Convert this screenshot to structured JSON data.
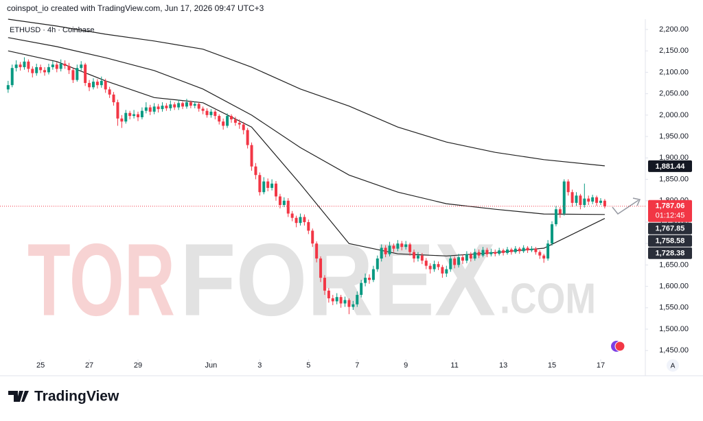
{
  "header": "coinspot_io created with TradingView.com, Jun 17, 2026 09:47 UTC+3",
  "footer": "TradingView",
  "scale_button": "A",
  "watermark": [
    "TOR",
    "FOREX",
    ".COM"
  ],
  "chart_data": {
    "type": "candlestick",
    "title": "ETHUSD · 4h · Coinbase",
    "up_color": "#089981",
    "down_color": "#f23645",
    "xlim": [
      -2,
      157
    ],
    "ylim": [
      1436,
      2224
    ],
    "xticks": [
      {
        "value": 8,
        "label": "25"
      },
      {
        "value": 20,
        "label": "27"
      },
      {
        "value": 32,
        "label": "29"
      },
      {
        "value": 50,
        "label": "Jun"
      },
      {
        "value": 62,
        "label": "3"
      },
      {
        "value": 74,
        "label": "5"
      },
      {
        "value": 86,
        "label": "7"
      },
      {
        "value": 98,
        "label": "9"
      },
      {
        "value": 110,
        "label": "11"
      },
      {
        "value": 122,
        "label": "13"
      },
      {
        "value": 134,
        "label": "15"
      },
      {
        "value": 146,
        "label": "17"
      }
    ],
    "yticks": [
      {
        "value": 1450,
        "label": "1,450.00"
      },
      {
        "value": 1500,
        "label": "1,500.00"
      },
      {
        "value": 1550,
        "label": "1,550.00"
      },
      {
        "value": 1600,
        "label": "1,600.00"
      },
      {
        "value": 1650,
        "label": "1,650.00"
      },
      {
        "value": 1700,
        "label": "1,700.00"
      },
      {
        "value": 1750,
        "label": "1,750.00"
      },
      {
        "value": 1800,
        "label": "1,800.00"
      },
      {
        "value": 1850,
        "label": "1,850.00"
      },
      {
        "value": 1900,
        "label": "1,900.00"
      },
      {
        "value": 1950,
        "label": "1,950.00"
      },
      {
        "value": 2000,
        "label": "2,000.00"
      },
      {
        "value": 2050,
        "label": "2,050.00"
      },
      {
        "value": 2100,
        "label": "2,100.00"
      },
      {
        "value": 2150,
        "label": "2,150.00"
      },
      {
        "value": 2200,
        "label": "2,200.00"
      }
    ],
    "open": [
      2060,
      2070,
      2110,
      2118,
      2112,
      2125,
      2108,
      2098,
      2112,
      2105,
      2100,
      2112,
      2118,
      2108,
      2120,
      2115,
      2105,
      2082,
      2110,
      2118,
      2075,
      2065,
      2078,
      2070,
      2080,
      2060,
      2048,
      2030,
      1992,
      1985,
      2005,
      1998,
      2002,
      1995,
      2010,
      2018,
      2008,
      2020,
      2014,
      2022,
      2016,
      2025,
      2018,
      2028,
      2020,
      2030,
      2022,
      2026,
      2015,
      2010,
      2000,
      2008,
      1998,
      1985,
      1975,
      1998,
      1990,
      1982,
      1978,
      1965,
      1930,
      1880,
      1860,
      1820,
      1845,
      1830,
      1840,
      1810,
      1790,
      1800,
      1770,
      1760,
      1748,
      1762,
      1750,
      1730,
      1700,
      1665,
      1620,
      1590,
      1572,
      1565,
      1575,
      1560,
      1568,
      1552,
      1558,
      1580,
      1608,
      1620,
      1615,
      1640,
      1665,
      1690,
      1675,
      1695,
      1688,
      1700,
      1692,
      1698,
      1680,
      1665,
      1672,
      1660,
      1648,
      1640,
      1652,
      1645,
      1630,
      1640,
      1665,
      1650,
      1668,
      1660,
      1675,
      1665,
      1680,
      1672,
      1685,
      1675,
      1680,
      1676,
      1684,
      1678,
      1686,
      1680,
      1688,
      1682,
      1690,
      1684,
      1688,
      1680,
      1672,
      1665,
      1700,
      1745,
      1780,
      1770,
      1845,
      1820,
      1795,
      1812,
      1790,
      1805,
      1798,
      1808,
      1795,
      1800
    ],
    "high": [
      2080,
      2118,
      2128,
      2124,
      2135,
      2130,
      2114,
      2120,
      2118,
      2112,
      2120,
      2126,
      2124,
      2130,
      2128,
      2122,
      2110,
      2118,
      2126,
      2122,
      2082,
      2086,
      2084,
      2090,
      2085,
      2066,
      2054,
      2036,
      2000,
      2012,
      2010,
      2012,
      2008,
      2018,
      2030,
      2024,
      2028,
      2026,
      2030,
      2028,
      2034,
      2030,
      2036,
      2032,
      2038,
      2034,
      2032,
      2030,
      2020,
      2016,
      2014,
      2012,
      2002,
      1992,
      2004,
      2002,
      1996,
      1990,
      1984,
      1970,
      1936,
      1888,
      1866,
      1855,
      1852,
      1850,
      1846,
      1816,
      1808,
      1806,
      1776,
      1765,
      1770,
      1768,
      1756,
      1735,
      1705,
      1670,
      1626,
      1596,
      1580,
      1584,
      1580,
      1576,
      1572,
      1566,
      1588,
      1615,
      1630,
      1628,
      1648,
      1672,
      1698,
      1696,
      1704,
      1700,
      1708,
      1706,
      1706,
      1702,
      1686,
      1680,
      1678,
      1666,
      1654,
      1660,
      1658,
      1650,
      1648,
      1672,
      1670,
      1676,
      1674,
      1682,
      1680,
      1688,
      1686,
      1692,
      1690,
      1688,
      1686,
      1690,
      1688,
      1692,
      1690,
      1694,
      1692,
      1696,
      1694,
      1694,
      1692,
      1684,
      1676,
      1708,
      1752,
      1788,
      1785,
      1850,
      1850,
      1826,
      1820,
      1816,
      1840,
      1812,
      1814,
      1812,
      1806,
      1804
    ],
    "low": [
      2052,
      2065,
      2102,
      2104,
      2106,
      2100,
      2088,
      2092,
      2098,
      2092,
      2095,
      2106,
      2100,
      2102,
      2108,
      2096,
      2075,
      2078,
      2104,
      2068,
      2056,
      2060,
      2062,
      2064,
      2052,
      2040,
      2022,
      1975,
      1970,
      1980,
      1990,
      1992,
      1986,
      1990,
      2004,
      2000,
      2002,
      2006,
      2008,
      2010,
      2010,
      2012,
      2012,
      2014,
      2015,
      2016,
      2016,
      2008,
      2002,
      1994,
      1994,
      1990,
      1978,
      1966,
      1970,
      1982,
      1975,
      1968,
      1955,
      1922,
      1870,
      1850,
      1812,
      1815,
      1822,
      1824,
      1800,
      1782,
      1785,
      1762,
      1752,
      1738,
      1742,
      1742,
      1722,
      1692,
      1656,
      1610,
      1580,
      1562,
      1556,
      1558,
      1550,
      1552,
      1535,
      1545,
      1552,
      1574,
      1600,
      1606,
      1610,
      1634,
      1658,
      1668,
      1670,
      1680,
      1682,
      1684,
      1686,
      1672,
      1656,
      1658,
      1652,
      1640,
      1630,
      1634,
      1638,
      1620,
      1622,
      1634,
      1642,
      1644,
      1652,
      1654,
      1658,
      1660,
      1666,
      1668,
      1668,
      1670,
      1670,
      1672,
      1672,
      1674,
      1674,
      1676,
      1676,
      1678,
      1678,
      1680,
      1674,
      1664,
      1655,
      1660,
      1695,
      1740,
      1760,
      1765,
      1812,
      1786,
      1788,
      1780,
      1784,
      1790,
      1792,
      1788,
      1790,
      1782
    ],
    "close": [
      2070,
      2110,
      2118,
      2112,
      2125,
      2108,
      2098,
      2112,
      2105,
      2100,
      2112,
      2118,
      2108,
      2120,
      2115,
      2105,
      2082,
      2110,
      2118,
      2075,
      2065,
      2078,
      2070,
      2080,
      2060,
      2048,
      2030,
      1992,
      1985,
      2005,
      1998,
      2002,
      1995,
      2010,
      2018,
      2008,
      2020,
      2014,
      2022,
      2016,
      2025,
      2018,
      2028,
      2020,
      2030,
      2022,
      2026,
      2015,
      2010,
      2000,
      2008,
      1998,
      1985,
      1975,
      1998,
      1990,
      1982,
      1978,
      1965,
      1930,
      1880,
      1860,
      1820,
      1845,
      1830,
      1840,
      1810,
      1790,
      1800,
      1770,
      1760,
      1748,
      1762,
      1750,
      1730,
      1700,
      1665,
      1620,
      1590,
      1572,
      1565,
      1575,
      1560,
      1568,
      1552,
      1558,
      1580,
      1608,
      1620,
      1615,
      1640,
      1665,
      1690,
      1675,
      1695,
      1688,
      1700,
      1692,
      1698,
      1680,
      1665,
      1672,
      1660,
      1648,
      1640,
      1652,
      1645,
      1630,
      1640,
      1665,
      1650,
      1668,
      1660,
      1675,
      1665,
      1680,
      1672,
      1685,
      1675,
      1680,
      1676,
      1684,
      1678,
      1686,
      1680,
      1688,
      1682,
      1690,
      1684,
      1688,
      1680,
      1672,
      1665,
      1700,
      1745,
      1780,
      1770,
      1845,
      1820,
      1795,
      1812,
      1790,
      1805,
      1798,
      1808,
      1795,
      1800,
      1787
    ],
    "lines": [
      {
        "color": "#1e1e1e",
        "x": [
          0,
          12,
          24,
          36,
          48,
          60,
          72,
          84,
          96,
          108,
          120,
          132,
          147
        ],
        "values": [
          2224,
          2208,
          2189,
          2173,
          2154,
          2112,
          2061,
          2021,
          1972,
          1937,
          1913,
          1896,
          1881.44
        ]
      },
      {
        "color": "#1e1e1e",
        "x": [
          0,
          12,
          24,
          36,
          48,
          60,
          72,
          84,
          96,
          108,
          120,
          132,
          147
        ],
        "values": [
          2181,
          2160,
          2134,
          2104,
          2061,
          2000,
          1924,
          1860,
          1820,
          1793,
          1780,
          1769,
          1767.85
        ]
      },
      {
        "color": "#1e1e1e",
        "x": [
          0,
          12,
          24,
          36,
          48,
          60,
          72,
          84,
          96,
          108,
          120,
          132,
          147
        ],
        "values": [
          2150,
          2125,
          2080,
          2041,
          2029,
          1972,
          1839,
          1700,
          1676,
          1671,
          1679,
          1689,
          1758.58
        ]
      }
    ],
    "last_price": {
      "value": 1787.06,
      "label": "1,787.06"
    },
    "countdown": "01:12:45",
    "price_labels": [
      {
        "value": 1881.44,
        "label": "1,881.44"
      },
      {
        "value": 1767.85,
        "label": "1,767.85"
      },
      {
        "value": 1758.58,
        "label": "1,758.58"
      },
      {
        "value": 1728.38,
        "label": "1,728.38"
      }
    ]
  }
}
